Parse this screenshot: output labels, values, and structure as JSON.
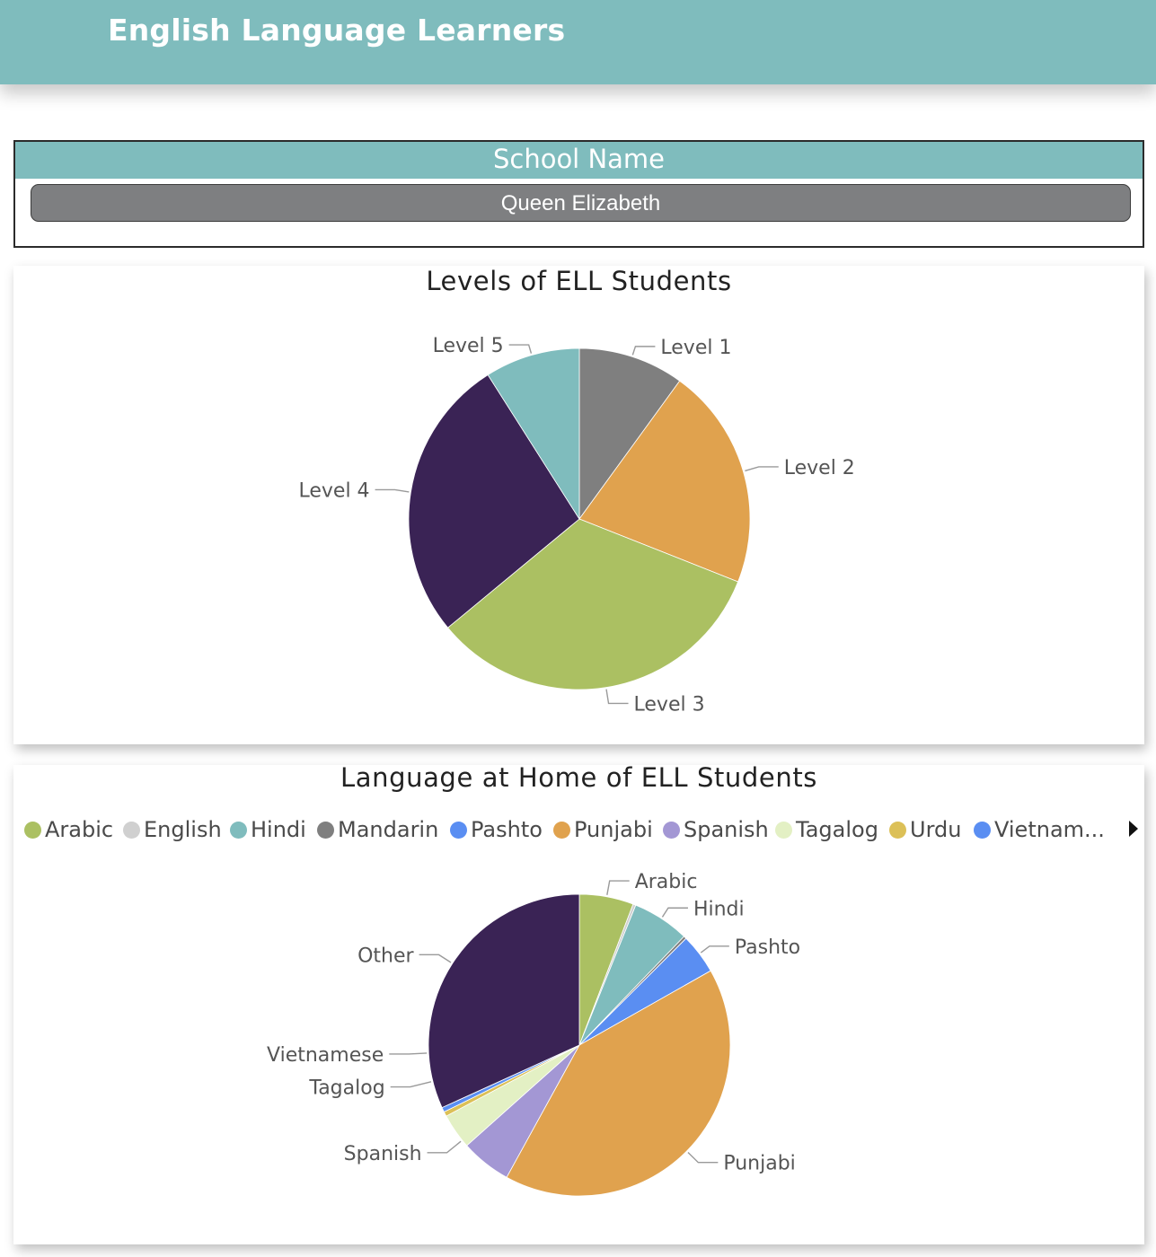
{
  "header": {
    "title": "English Language Learners"
  },
  "slicer": {
    "heading": "School Name",
    "selected": "Queen Elizabeth"
  },
  "colors": {
    "header_bg": "#7fbcbd",
    "slicer_value_bg": "#7e7f81"
  },
  "chart_data": [
    {
      "type": "pie",
      "title": "Levels of ELL Students",
      "slices": [
        {
          "label": "Level 1",
          "value": 10,
          "color": "#7f7f7f"
        },
        {
          "label": "Level 2",
          "value": 21,
          "color": "#e0a24e"
        },
        {
          "label": "Level 3",
          "value": 33,
          "color": "#abc062"
        },
        {
          "label": "Level 4",
          "value": 27,
          "color": "#3a2355"
        },
        {
          "label": "Level 5",
          "value": 9,
          "color": "#7fbcbd"
        }
      ]
    },
    {
      "type": "pie",
      "title": "Language at Home of ELL Students",
      "legend": [
        {
          "label": "Arabic",
          "color": "#abc062"
        },
        {
          "label": "English",
          "color": "#d0d0d0"
        },
        {
          "label": "Hindi",
          "color": "#7fbcbd"
        },
        {
          "label": "Mandarin",
          "color": "#7f7f7f"
        },
        {
          "label": "Pashto",
          "color": "#5a8ef2"
        },
        {
          "label": "Punjabi",
          "color": "#e0a24e"
        },
        {
          "label": "Spanish",
          "color": "#a397d4"
        },
        {
          "label": "Tagalog",
          "color": "#e3f0c4"
        },
        {
          "label": "Urdu",
          "color": "#dcc057"
        },
        {
          "label": "Vietnam...",
          "color": "#5a8ef2"
        }
      ],
      "legend_position": "top",
      "slices": [
        {
          "label": "Arabic",
          "value": 5.8,
          "color": "#abc062"
        },
        {
          "label": "English",
          "value": 0.3,
          "color": "#d0d0d0"
        },
        {
          "label": "Hindi",
          "value": 6.1,
          "color": "#7fbcbd"
        },
        {
          "label": "Mandarin",
          "value": 0.3,
          "color": "#7f7f7f"
        },
        {
          "label": "Pashto",
          "value": 4.3,
          "color": "#5a8ef2"
        },
        {
          "label": "Punjabi",
          "value": 41.2,
          "color": "#e0a24e"
        },
        {
          "label": "Spanish",
          "value": 5.4,
          "color": "#a397d4"
        },
        {
          "label": "Tagalog",
          "value": 3.8,
          "color": "#e3f0c4"
        },
        {
          "label": "Urdu",
          "value": 0.5,
          "color": "#dcc057"
        },
        {
          "label": "Vietnamese",
          "value": 0.5,
          "color": "#5a8ef2"
        },
        {
          "label": "Other",
          "value": 31.8,
          "color": "#3a2355"
        }
      ],
      "labeled_slices": [
        "Arabic",
        "Hindi",
        "Pashto",
        "Punjabi",
        "Spanish",
        "Tagalog",
        "Vietnamese",
        "Other"
      ]
    }
  ]
}
